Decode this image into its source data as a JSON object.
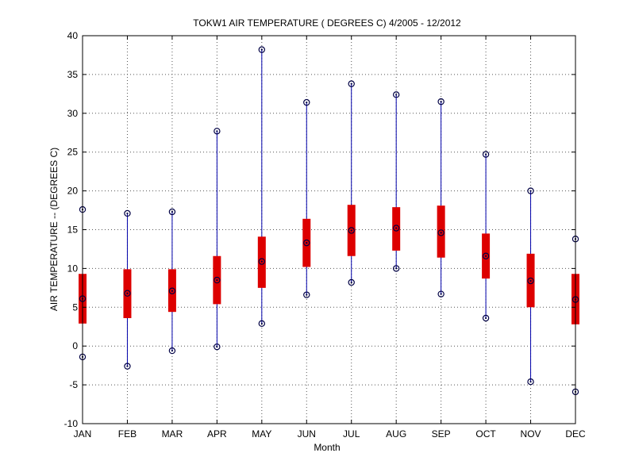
{
  "chart_data": {
    "type": "boxplot",
    "title": "TOKW1  AIR TEMPERATURE ( DEGREES C) 4/2005 - 12/2012",
    "xlabel": "Month",
    "ylabel": "AIR TEMPERATURE -- (DEGREES C)",
    "ylim": [
      -10,
      40
    ],
    "yticks": [
      -10,
      -5,
      0,
      5,
      10,
      15,
      20,
      25,
      30,
      35,
      40
    ],
    "grid": true,
    "categories": [
      "JAN",
      "FEB",
      "MAR",
      "APR",
      "MAY",
      "JUN",
      "JUL",
      "AUG",
      "SEP",
      "OCT",
      "NOV",
      "DEC"
    ],
    "series": [
      {
        "min": [
          -1.4,
          -2.6,
          -0.6,
          -0.1,
          2.9,
          6.6,
          8.2,
          10.0,
          6.7,
          3.6,
          -4.6,
          -5.9
        ],
        "q1": [
          2.9,
          3.6,
          4.4,
          5.4,
          7.5,
          10.2,
          11.6,
          12.3,
          11.4,
          8.7,
          5.0,
          2.8
        ],
        "median": [
          6.1,
          6.8,
          7.1,
          8.5,
          10.9,
          13.3,
          14.9,
          15.2,
          14.6,
          11.6,
          8.4,
          6.0
        ],
        "q3": [
          9.3,
          9.9,
          9.9,
          11.6,
          14.1,
          16.4,
          18.2,
          17.9,
          18.1,
          14.5,
          11.9,
          9.3
        ],
        "max": [
          17.6,
          17.1,
          17.3,
          27.7,
          38.2,
          31.4,
          33.8,
          32.4,
          31.5,
          24.7,
          20.0,
          13.8
        ]
      }
    ],
    "colors": {
      "whisker": "#0000aa",
      "box": "#dd0000",
      "marker": "#000044",
      "grid": "#555555",
      "axis": "#000000"
    }
  }
}
